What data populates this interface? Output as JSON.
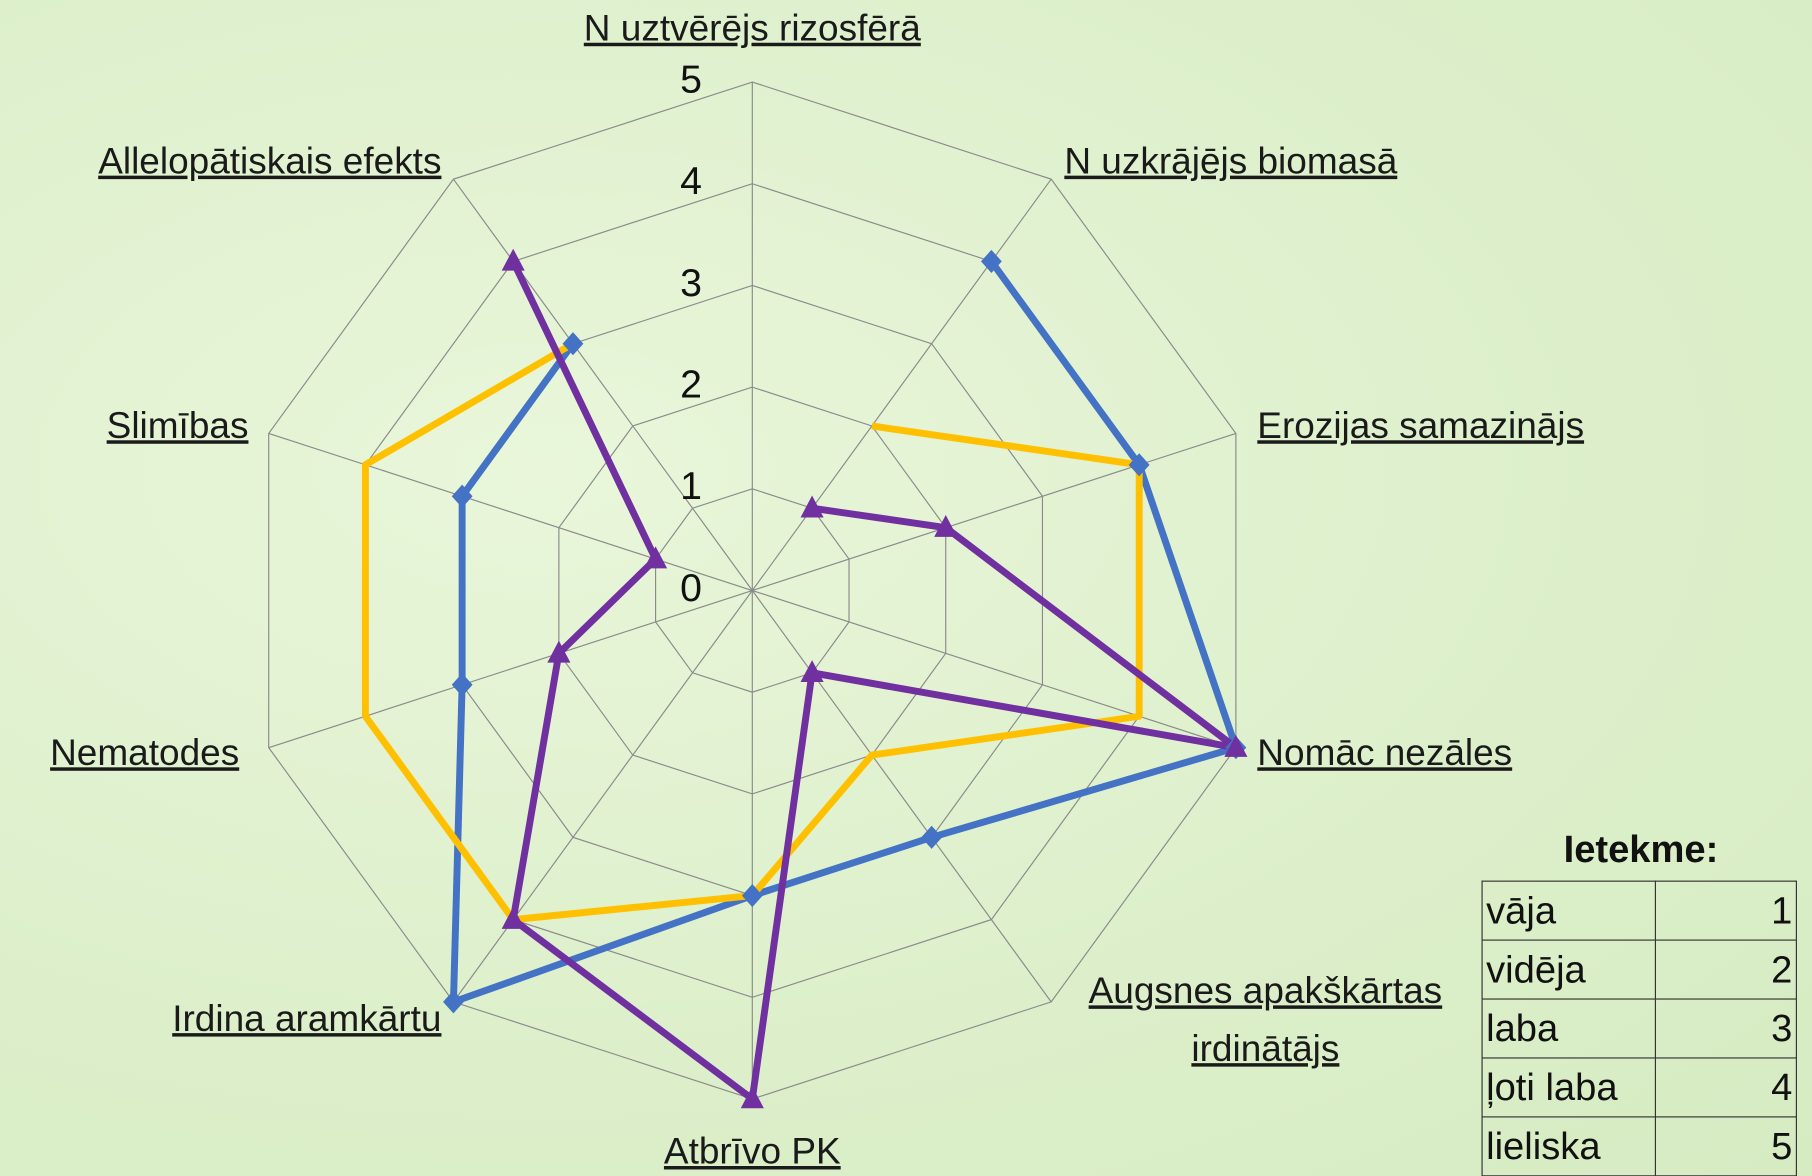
{
  "chart_data": {
    "type": "radar",
    "categories": [
      "N uztvērējs rizosfērā",
      "N uzkrājējs biomasā",
      "Erozijas samazinājs",
      "Nomāc nezāles",
      "Augsnes apakškārtas\nirdinātājs",
      "Atbrīvo PK",
      "Irdina aramkārtu",
      "Nematodes",
      "Slimības",
      "Allelopātiskais efekts"
    ],
    "series": [
      {
        "color": "#4472c4",
        "marker": "diamond",
        "values": [
          null,
          4,
          4,
          5,
          3,
          3,
          5,
          3,
          3,
          3
        ]
      },
      {
        "color": "#ffc000",
        "marker": "none",
        "values": [
          null,
          2,
          4,
          4,
          2,
          3,
          4,
          4,
          4,
          3
        ]
      },
      {
        "color": "#7030a0",
        "marker": "triangle",
        "values": [
          null,
          1,
          2,
          5,
          1,
          5,
          4,
          2,
          1,
          4
        ]
      }
    ],
    "rlim": [
      0,
      5
    ],
    "rticks": [
      0,
      1,
      2,
      3,
      4,
      5
    ],
    "grid": true
  },
  "table": {
    "title": "Ietekme:",
    "rows": [
      [
        "vāja",
        "1"
      ],
      [
        "vidēja",
        "2"
      ],
      [
        "laba",
        "3"
      ],
      [
        "ļoti laba",
        "4"
      ],
      [
        "lieliska",
        "5"
      ]
    ]
  }
}
